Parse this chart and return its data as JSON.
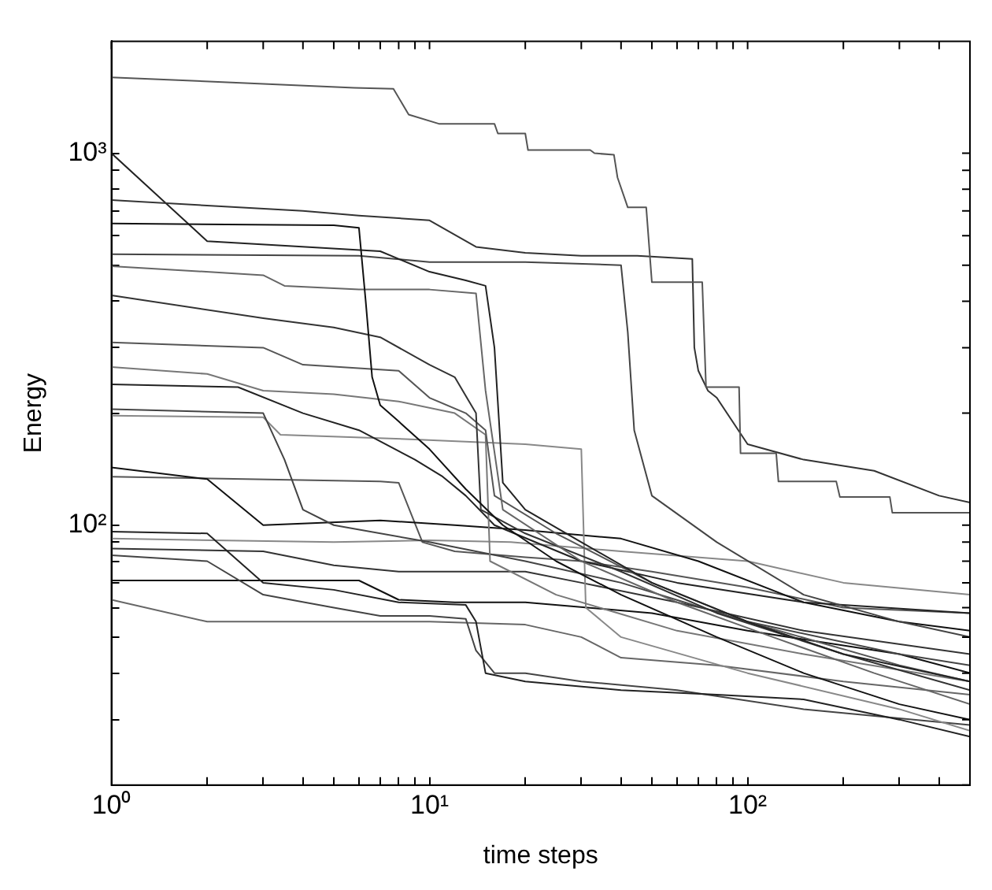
{
  "chart_data": {
    "type": "line",
    "xlabel": "time steps",
    "ylabel": "Energy",
    "log": "xy",
    "grid": false,
    "legend": false,
    "marker": "none",
    "line_style": "solid",
    "xlim": [
      1,
      500
    ],
    "ylim": [
      20,
      2000
    ],
    "xticks": [
      {
        "value": 1,
        "label": "10⁰"
      },
      {
        "value": 2,
        "label": null
      },
      {
        "value": 3,
        "label": null
      },
      {
        "value": 4,
        "label": null
      },
      {
        "value": 5,
        "label": null
      },
      {
        "value": 6,
        "label": null
      },
      {
        "value": 7,
        "label": null
      },
      {
        "value": 8,
        "label": null
      },
      {
        "value": 9,
        "label": null
      },
      {
        "value": 10,
        "label": "10¹"
      },
      {
        "value": 20,
        "label": null
      },
      {
        "value": 30,
        "label": null
      },
      {
        "value": 40,
        "label": null
      },
      {
        "value": 50,
        "label": null
      },
      {
        "value": 60,
        "label": null
      },
      {
        "value": 70,
        "label": null
      },
      {
        "value": 80,
        "label": null
      },
      {
        "value": 90,
        "label": null
      },
      {
        "value": 100,
        "label": "10²"
      },
      {
        "value": 200,
        "label": null
      },
      {
        "value": 300,
        "label": null
      },
      {
        "value": 400,
        "label": null
      }
    ],
    "yticks": [
      {
        "value": 20,
        "label": null
      },
      {
        "value": 30,
        "label": null
      },
      {
        "value": 40,
        "label": null
      },
      {
        "value": 50,
        "label": null
      },
      {
        "value": 60,
        "label": null
      },
      {
        "value": 70,
        "label": null
      },
      {
        "value": 80,
        "label": null
      },
      {
        "value": 90,
        "label": null
      },
      {
        "value": 100,
        "label": "10²"
      },
      {
        "value": 200,
        "label": null
      },
      {
        "value": 300,
        "label": null
      },
      {
        "value": 400,
        "label": null
      },
      {
        "value": 500,
        "label": null
      },
      {
        "value": 600,
        "label": null
      },
      {
        "value": 700,
        "label": null
      },
      {
        "value": 800,
        "label": null
      },
      {
        "value": 900,
        "label": null
      },
      {
        "value": 1000,
        "label": "10³"
      }
    ],
    "series": [
      {
        "color": "#555555",
        "x": [
          1,
          5.8,
          7.7,
          8.6,
          10.7,
          16,
          16.4,
          20,
          20.4,
          32,
          33,
          38,
          39,
          42,
          48,
          50,
          72,
          74,
          94,
          95,
          123,
          125,
          190,
          195,
          280,
          285,
          500
        ],
        "values": [
          1600,
          1500,
          1490,
          1270,
          1200,
          1200,
          1130,
          1130,
          1020,
          1020,
          1000,
          990,
          860,
          715,
          715,
          450,
          450,
          235,
          235,
          156,
          156,
          131,
          131,
          119,
          119,
          108,
          108
        ]
      },
      {
        "color": "#333333",
        "x": [
          1,
          4,
          6,
          10,
          14,
          20,
          30,
          45,
          67,
          68,
          70,
          75,
          80,
          100,
          150,
          250,
          400,
          500
        ],
        "values": [
          748,
          700,
          680,
          660,
          560,
          540,
          530,
          530,
          520,
          300,
          260,
          230,
          220,
          165,
          150,
          140,
          120,
          115
        ]
      },
      {
        "color": "#111111",
        "x": [
          1,
          5,
          6,
          6.3,
          6.6,
          7,
          8,
          10,
          13,
          17,
          25,
          40,
          80,
          150,
          300,
          500
        ],
        "values": [
          647,
          640,
          630,
          400,
          250,
          210,
          190,
          160,
          125,
          100,
          80,
          65,
          50,
          40,
          33,
          30
        ]
      },
      {
        "color": "#222222",
        "x": [
          1,
          2,
          7,
          10,
          13,
          15,
          16,
          17,
          20,
          30,
          50,
          100,
          200,
          500
        ],
        "values": [
          1000,
          580,
          545,
          480,
          455,
          440,
          300,
          130,
          110,
          90,
          70,
          55,
          45,
          38
        ]
      },
      {
        "color": "#444444",
        "x": [
          1,
          6,
          10,
          20,
          40,
          42,
          44,
          50,
          80,
          150,
          300,
          500
        ],
        "values": [
          535,
          530,
          510,
          510,
          500,
          330,
          180,
          120,
          90,
          65,
          55,
          50
        ]
      },
      {
        "color": "#666666",
        "x": [
          1,
          3,
          3.5,
          6,
          10,
          14,
          15,
          17,
          30,
          60,
          120,
          250,
          500
        ],
        "values": [
          497,
          470,
          440,
          430,
          430,
          420,
          230,
          110,
          80,
          62,
          50,
          40,
          33
        ]
      },
      {
        "color": "#333333",
        "x": [
          1,
          3,
          5,
          7,
          10,
          12,
          14,
          14.5,
          20,
          40,
          80,
          200,
          500
        ],
        "values": [
          415,
          360,
          340,
          320,
          270,
          250,
          200,
          110,
          95,
          75,
          58,
          45,
          36
        ]
      },
      {
        "color": "#555555",
        "x": [
          1,
          3,
          4,
          8,
          10,
          13,
          15,
          16,
          25,
          50,
          100,
          300,
          500
        ],
        "values": [
          310,
          300,
          270,
          260,
          220,
          200,
          180,
          120,
          95,
          70,
          55,
          42,
          38
        ]
      },
      {
        "color": "#777777",
        "x": [
          1,
          2,
          3,
          5,
          8,
          12,
          15,
          15.5,
          25,
          60,
          150,
          500
        ],
        "values": [
          266,
          255,
          230,
          225,
          215,
          200,
          175,
          80,
          65,
          52,
          45,
          38
        ]
      },
      {
        "color": "#222222",
        "x": [
          1,
          2.5,
          4,
          6,
          9,
          11,
          13,
          16,
          30,
          60,
          150,
          500
        ],
        "values": [
          239,
          235,
          200,
          180,
          150,
          135,
          120,
          100,
          80,
          70,
          62,
          58
        ]
      },
      {
        "color": "#444444",
        "x": [
          1,
          3,
          3.5,
          4,
          5,
          10,
          20,
          40,
          100,
          300,
          500
        ],
        "values": [
          205,
          200,
          150,
          110,
          100,
          90,
          80,
          70,
          55,
          45,
          42
        ]
      },
      {
        "color": "#888888",
        "x": [
          1,
          3,
          3.4,
          9,
          20,
          30,
          31,
          40,
          100,
          300,
          500
        ],
        "values": [
          197,
          195,
          175,
          170,
          165,
          160,
          60,
          50,
          40,
          32,
          28
        ]
      },
      {
        "color": "#111111",
        "x": [
          1,
          2,
          3,
          7,
          12,
          20,
          40,
          70,
          150,
          300,
          500
        ],
        "values": [
          143,
          133,
          100,
          103,
          100,
          97,
          92,
          80,
          62,
          55,
          52
        ]
      },
      {
        "color": "#555555",
        "x": [
          1,
          7,
          8,
          9.5,
          12,
          20,
          30,
          50,
          100,
          200,
          500
        ],
        "values": [
          135,
          131,
          130,
          90,
          85,
          82,
          80,
          75,
          68,
          60,
          58
        ]
      },
      {
        "color": "#222222",
        "x": [
          1,
          2,
          3,
          5,
          8,
          13,
          14,
          15,
          20,
          40,
          80,
          150,
          300,
          500
        ],
        "values": [
          96,
          95,
          70,
          67,
          62,
          61,
          55,
          40,
          38,
          36,
          35,
          34,
          30,
          27
        ]
      },
      {
        "color": "#888888",
        "x": [
          1,
          5,
          10,
          18,
          40,
          100,
          200,
          500
        ],
        "values": [
          92,
          90,
          91,
          90,
          85,
          80,
          70,
          65
        ]
      },
      {
        "color": "#333333",
        "x": [
          1,
          3,
          5,
          8,
          20,
          30,
          60,
          150,
          500
        ],
        "values": [
          86.5,
          85,
          78,
          75,
          75,
          70,
          62,
          52,
          45
        ]
      },
      {
        "color": "#444444",
        "x": [
          1,
          2,
          3,
          5,
          7,
          10,
          13,
          14,
          16,
          20,
          30,
          60,
          150,
          500
        ],
        "values": [
          83,
          80,
          65,
          60,
          57,
          57,
          56,
          46,
          40,
          40,
          38,
          36,
          32,
          29
        ]
      },
      {
        "color": "#111111",
        "x": [
          1,
          6,
          8,
          12,
          20,
          50,
          100,
          300,
          500
        ],
        "values": [
          71,
          71,
          63,
          62,
          62,
          58,
          52,
          45,
          40
        ]
      },
      {
        "color": "#666666",
        "x": [
          1,
          2,
          5,
          10,
          20,
          30,
          40,
          80,
          200,
          500
        ],
        "values": [
          63,
          55,
          55,
          55,
          54,
          50,
          44,
          42,
          38,
          35
        ]
      }
    ]
  }
}
